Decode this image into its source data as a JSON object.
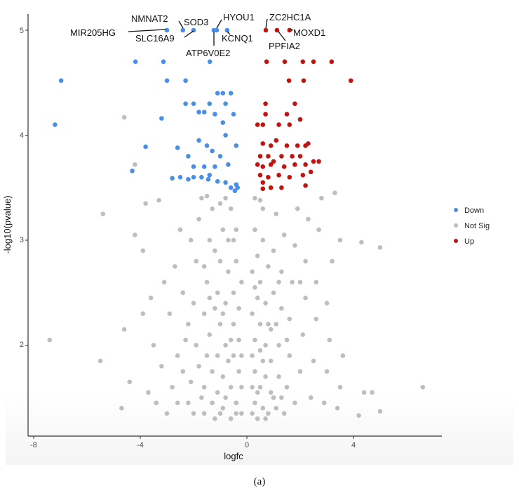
{
  "chart_data": {
    "type": "scatter",
    "title": "",
    "xlabel": "logfc",
    "ylabel": "-log10(pvalue)",
    "xlim": [
      -8.1,
      7.3
    ],
    "ylim": [
      1.12,
      5.15
    ],
    "xticks": [
      -8,
      -4,
      0,
      4
    ],
    "xtick_labels": [
      "-8",
      "-4",
      "0",
      "4"
    ],
    "yticks": [
      2,
      3,
      4,
      5
    ],
    "ytick_labels": [
      "2",
      "3",
      "4",
      "5"
    ],
    "grid": false,
    "legend_position": "right",
    "caption": "(a)",
    "series": [
      {
        "name": "Down",
        "color": "#4a8fe6",
        "points": [
          [
            -3.0,
            5.0
          ],
          [
            -2.4,
            5.0
          ],
          [
            -2.0,
            5.0
          ],
          [
            -1.24,
            5.0
          ],
          [
            -1.13,
            5.0
          ],
          [
            -0.74,
            5.0
          ],
          [
            -4.18,
            4.7
          ],
          [
            -3.13,
            4.7
          ],
          [
            -1.39,
            4.7
          ],
          [
            -6.97,
            4.52
          ],
          [
            -3.0,
            4.52
          ],
          [
            -2.3,
            4.52
          ],
          [
            -7.2,
            4.1
          ],
          [
            -4.3,
            3.66
          ],
          [
            -3.8,
            3.89
          ],
          [
            -3.2,
            4.16
          ],
          [
            -2.6,
            3.88
          ],
          [
            -2.3,
            4.3
          ],
          [
            -2.0,
            4.3
          ],
          [
            -1.8,
            4.22
          ],
          [
            -1.6,
            4.22
          ],
          [
            -1.4,
            4.3
          ],
          [
            -1.1,
            4.4
          ],
          [
            -0.9,
            4.4
          ],
          [
            -0.6,
            4.4
          ],
          [
            -0.8,
            4.3
          ],
          [
            -1.2,
            4.2
          ],
          [
            -0.9,
            4.12
          ],
          [
            -0.5,
            4.2
          ],
          [
            -0.8,
            4.0
          ],
          [
            -0.4,
            3.9
          ],
          [
            -1.8,
            3.95
          ],
          [
            -2.2,
            3.8
          ],
          [
            -1.5,
            3.9
          ],
          [
            -1.3,
            3.85
          ],
          [
            -1.0,
            3.8
          ],
          [
            -2.0,
            3.7
          ],
          [
            -1.6,
            3.7
          ],
          [
            -1.2,
            3.7
          ],
          [
            -0.7,
            3.72
          ],
          [
            -1.4,
            3.62
          ],
          [
            -1.45,
            3.58
          ],
          [
            -1.1,
            3.56
          ],
          [
            -0.8,
            3.55
          ],
          [
            -0.6,
            3.5
          ],
          [
            -0.45,
            3.47
          ],
          [
            -0.35,
            3.5
          ],
          [
            -0.4,
            3.53
          ],
          [
            -2.5,
            3.6
          ],
          [
            -2.8,
            3.59
          ],
          [
            -2.2,
            3.58
          ],
          [
            -2.0,
            3.6
          ],
          [
            -1.7,
            3.6
          ]
        ]
      },
      {
        "name": "Not Sig",
        "color": "#bebebe",
        "points": [
          [
            -7.4,
            2.05
          ],
          [
            -5.5,
            1.85
          ],
          [
            -4.7,
            1.4
          ],
          [
            -5.4,
            3.25
          ],
          [
            -4.6,
            2.15
          ],
          [
            -4.2,
            3.05
          ],
          [
            -4.4,
            1.65
          ],
          [
            -3.9,
            2.9
          ],
          [
            -3.6,
            2.45
          ],
          [
            -4.6,
            4.17
          ],
          [
            -4.2,
            3.72
          ],
          [
            -3.8,
            3.35
          ],
          [
            -3.3,
            3.38
          ],
          [
            -3.9,
            2.3
          ],
          [
            -3.5,
            2.0
          ],
          [
            -3.2,
            1.8
          ],
          [
            -3.7,
            1.55
          ],
          [
            -3.4,
            1.45
          ],
          [
            -3.0,
            1.35
          ],
          [
            -2.8,
            1.6
          ],
          [
            -2.6,
            1.9
          ],
          [
            -2.9,
            2.3
          ],
          [
            -3.1,
            2.6
          ],
          [
            -2.7,
            2.75
          ],
          [
            -2.5,
            3.1
          ],
          [
            -2.4,
            2.5
          ],
          [
            -2.2,
            2.2
          ],
          [
            -2.4,
            1.75
          ],
          [
            -2.2,
            1.45
          ],
          [
            -2.0,
            1.35
          ],
          [
            -2.1,
            1.65
          ],
          [
            -1.9,
            2.0
          ],
          [
            -2.0,
            2.4
          ],
          [
            -1.9,
            2.8
          ],
          [
            -1.8,
            3.2
          ],
          [
            -1.7,
            3.4
          ],
          [
            -2.1,
            3.0
          ],
          [
            -1.6,
            1.35
          ],
          [
            -1.6,
            1.6
          ],
          [
            -1.5,
            1.9
          ],
          [
            -1.6,
            2.3
          ],
          [
            -1.5,
            2.6
          ],
          [
            -1.4,
            3.0
          ],
          [
            -1.3,
            3.3
          ],
          [
            -1.5,
            3.42
          ],
          [
            -1.4,
            2.1
          ],
          [
            -1.3,
            1.75
          ],
          [
            -1.3,
            1.45
          ],
          [
            -1.2,
            1.3
          ],
          [
            -1.1,
            1.55
          ],
          [
            -1.1,
            1.9
          ],
          [
            -1.0,
            2.2
          ],
          [
            -1.1,
            2.5
          ],
          [
            -1.0,
            2.8
          ],
          [
            -0.9,
            3.1
          ],
          [
            -1.0,
            3.35
          ],
          [
            -0.9,
            1.4
          ],
          [
            -0.9,
            1.7
          ],
          [
            -0.8,
            2.0
          ],
          [
            -0.8,
            2.4
          ],
          [
            -0.7,
            2.7
          ],
          [
            -0.7,
            3.0
          ],
          [
            -0.6,
            3.3
          ],
          [
            -0.6,
            1.3
          ],
          [
            -0.6,
            1.6
          ],
          [
            -0.5,
            1.9
          ],
          [
            -0.5,
            2.2
          ],
          [
            -0.5,
            2.5
          ],
          [
            -0.4,
            2.8
          ],
          [
            -0.4,
            3.1
          ],
          [
            -0.4,
            1.45
          ],
          [
            -0.3,
            1.75
          ],
          [
            -0.3,
            2.05
          ],
          [
            -0.3,
            2.35
          ],
          [
            -0.2,
            1.35
          ],
          [
            -0.2,
            1.6
          ],
          [
            -0.2,
            1.9
          ],
          [
            -0.2,
            2.6
          ],
          [
            -1.2,
            2.35
          ],
          [
            -1.4,
            2.45
          ],
          [
            -0.8,
            1.5
          ],
          [
            -1.0,
            1.35
          ],
          [
            -0.7,
            1.85
          ],
          [
            -0.9,
            2.3
          ],
          [
            -1.7,
            1.5
          ],
          [
            -1.8,
            1.8
          ],
          [
            -2.3,
            2.05
          ],
          [
            -2.6,
            1.45
          ],
          [
            -1.2,
            2.9
          ],
          [
            -0.8,
            3.4
          ],
          [
            -0.5,
            3.0
          ],
          [
            -1.6,
            2.75
          ],
          [
            -0.6,
            2.05
          ],
          [
            -0.4,
            1.35
          ],
          [
            0.2,
            1.35
          ],
          [
            0.2,
            1.6
          ],
          [
            0.2,
            1.9
          ],
          [
            0.2,
            2.3
          ],
          [
            0.2,
            2.7
          ],
          [
            0.3,
            3.1
          ],
          [
            0.3,
            3.4
          ],
          [
            0.3,
            1.45
          ],
          [
            0.3,
            1.75
          ],
          [
            0.3,
            2.05
          ],
          [
            0.4,
            2.45
          ],
          [
            0.4,
            2.85
          ],
          [
            0.4,
            1.3
          ],
          [
            0.5,
            1.6
          ],
          [
            0.5,
            1.95
          ],
          [
            0.5,
            2.2
          ],
          [
            0.5,
            2.6
          ],
          [
            0.6,
            3.0
          ],
          [
            0.6,
            3.3
          ],
          [
            0.6,
            1.4
          ],
          [
            0.7,
            1.7
          ],
          [
            0.7,
            2.0
          ],
          [
            0.7,
            2.4
          ],
          [
            0.8,
            2.75
          ],
          [
            0.8,
            1.35
          ],
          [
            0.9,
            1.55
          ],
          [
            0.9,
            1.85
          ],
          [
            0.9,
            2.15
          ],
          [
            1.0,
            2.5
          ],
          [
            1.0,
            2.9
          ],
          [
            1.1,
            3.25
          ],
          [
            1.1,
            1.4
          ],
          [
            1.2,
            1.7
          ],
          [
            1.2,
            2.0
          ],
          [
            1.3,
            2.35
          ],
          [
            1.3,
            2.7
          ],
          [
            1.4,
            3.05
          ],
          [
            1.4,
            1.35
          ],
          [
            1.5,
            1.6
          ],
          [
            1.6,
            1.9
          ],
          [
            1.6,
            2.25
          ],
          [
            1.7,
            2.6
          ],
          [
            1.8,
            2.95
          ],
          [
            1.9,
            3.3
          ],
          [
            1.8,
            1.45
          ],
          [
            2.0,
            1.75
          ],
          [
            2.1,
            2.1
          ],
          [
            2.2,
            2.45
          ],
          [
            2.2,
            2.8
          ],
          [
            2.3,
            3.2
          ],
          [
            2.4,
            1.5
          ],
          [
            2.5,
            1.85
          ],
          [
            2.6,
            2.25
          ],
          [
            2.6,
            2.6
          ],
          [
            2.7,
            3.1
          ],
          [
            2.8,
            3.4
          ],
          [
            2.9,
            1.45
          ],
          [
            3.0,
            1.75
          ],
          [
            3.1,
            2.05
          ],
          [
            3.0,
            2.4
          ],
          [
            3.2,
            2.8
          ],
          [
            3.3,
            3.45
          ],
          [
            3.5,
            3.0
          ],
          [
            3.6,
            1.9
          ],
          [
            3.4,
            1.4
          ],
          [
            3.5,
            1.6
          ],
          [
            4.3,
            2.98
          ],
          [
            5.0,
            2.93
          ],
          [
            6.6,
            1.6
          ],
          [
            4.4,
            1.55
          ],
          [
            5.0,
            1.37
          ],
          [
            4.2,
            1.33
          ],
          [
            4.7,
            1.55
          ],
          [
            0.4,
            1.55
          ],
          [
            0.6,
            1.85
          ],
          [
            0.8,
            2.2
          ],
          [
            1.0,
            1.5
          ],
          [
            1.1,
            2.2
          ],
          [
            0.5,
            3.38
          ],
          [
            1.2,
            2.6
          ],
          [
            1.5,
            2.05
          ],
          [
            0.3,
            2.55
          ],
          [
            0.7,
            1.3
          ],
          [
            1.3,
            1.5
          ],
          [
            2.0,
            2.6
          ]
        ]
      },
      {
        "name": "Up",
        "color": "#c0150f",
        "points": [
          [
            0.71,
            5.0
          ],
          [
            1.13,
            5.0
          ],
          [
            1.6,
            5.0
          ],
          [
            0.74,
            4.7
          ],
          [
            1.42,
            4.7
          ],
          [
            2.1,
            4.7
          ],
          [
            2.5,
            4.7
          ],
          [
            3.18,
            4.7
          ],
          [
            3.9,
            4.52
          ],
          [
            1.58,
            4.52
          ],
          [
            2.13,
            4.52
          ],
          [
            0.4,
            4.1
          ],
          [
            0.6,
            4.1
          ],
          [
            0.7,
            4.3
          ],
          [
            0.7,
            4.2
          ],
          [
            1.2,
            4.1
          ],
          [
            1.5,
            4.2
          ],
          [
            1.6,
            4.1
          ],
          [
            1.8,
            4.3
          ],
          [
            2.0,
            4.15
          ],
          [
            0.6,
            3.92
          ],
          [
            0.9,
            3.9
          ],
          [
            1.1,
            3.95
          ],
          [
            1.5,
            3.9
          ],
          [
            1.9,
            3.9
          ],
          [
            2.2,
            3.9
          ],
          [
            2.3,
            3.92
          ],
          [
            0.5,
            3.8
          ],
          [
            0.8,
            3.8
          ],
          [
            1.3,
            3.8
          ],
          [
            1.7,
            3.8
          ],
          [
            2.0,
            3.8
          ],
          [
            0.4,
            3.72
          ],
          [
            0.6,
            3.7
          ],
          [
            0.9,
            3.72
          ],
          [
            1.0,
            3.75
          ],
          [
            1.4,
            3.7
          ],
          [
            1.8,
            3.72
          ],
          [
            2.2,
            3.72
          ],
          [
            2.5,
            3.75
          ],
          [
            2.7,
            3.75
          ],
          [
            0.5,
            3.62
          ],
          [
            0.8,
            3.6
          ],
          [
            1.2,
            3.62
          ],
          [
            1.6,
            3.6
          ],
          [
            2.1,
            3.62
          ],
          [
            2.4,
            3.65
          ],
          [
            0.6,
            3.55
          ],
          [
            0.9,
            3.5
          ],
          [
            1.3,
            3.5
          ],
          [
            2.2,
            3.52
          ],
          [
            0.6,
            3.49
          ]
        ]
      }
    ],
    "annotations": [
      {
        "label": "MIR205HG",
        "x": -3.0,
        "y": 5.0
      },
      {
        "label": "NMNAT2",
        "x": -2.4,
        "y": 5.0
      },
      {
        "label": "SOD3",
        "x": -2.0,
        "y": 5.0
      },
      {
        "label": "SLC16A9",
        "x": -2.0,
        "y": 5.0
      },
      {
        "label": "HYOU1",
        "x": -1.13,
        "y": 5.0
      },
      {
        "label": "ATP6V0E2",
        "x": -1.24,
        "y": 5.0
      },
      {
        "label": "KCNQ1",
        "x": -0.74,
        "y": 5.0
      },
      {
        "label": "ZC2HC1A",
        "x": 0.71,
        "y": 5.0
      },
      {
        "label": "PPFIA2",
        "x": 1.13,
        "y": 5.0
      },
      {
        "label": "MOXD1",
        "x": 1.6,
        "y": 5.0
      }
    ]
  }
}
